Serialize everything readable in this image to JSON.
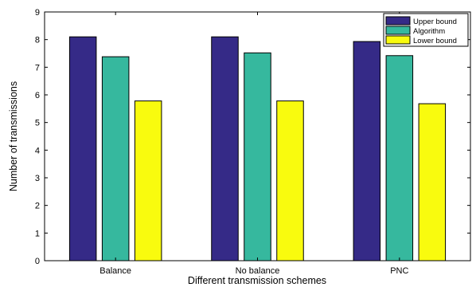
{
  "chart_data": {
    "type": "bar",
    "xlabel": "Different transmission schemes",
    "ylabel": "Number of transmissions",
    "categories": [
      "Balance",
      "No balance",
      "PNC"
    ],
    "series": [
      {
        "name": "Upper bound",
        "values": [
          8.1,
          8.1,
          7.93
        ],
        "color": "#352a87"
      },
      {
        "name": "Algorithm",
        "values": [
          7.38,
          7.52,
          7.42
        ],
        "color": "#36b89e"
      },
      {
        "name": "Lower bound",
        "values": [
          5.78,
          5.78,
          5.68
        ],
        "color": "#f9fb0e"
      }
    ],
    "ylim": [
      0,
      9
    ],
    "yticks": [
      "0",
      "1",
      "2",
      "3",
      "4",
      "5",
      "6",
      "7",
      "8",
      "9"
    ],
    "grid": false,
    "legend_position": "top-right"
  }
}
